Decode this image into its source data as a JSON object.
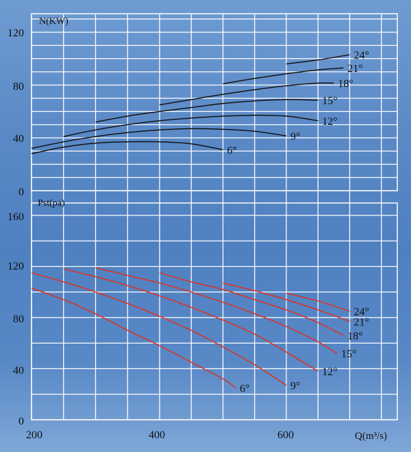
{
  "chart_data": [
    {
      "type": "line",
      "title": "",
      "ylabel": "N(KW)",
      "xlabel": "",
      "xlim": [
        200,
        700
      ],
      "ylim": [
        0,
        130
      ],
      "yticks": [
        "0",
        "40",
        "80",
        "120"
      ],
      "series": [
        {
          "name": "6°",
          "x": [
            200,
            250,
            300,
            350,
            400,
            450,
            500
          ],
          "y": [
            28,
            33,
            36,
            37,
            37,
            35.5,
            31
          ]
        },
        {
          "name": "9°",
          "x": [
            200,
            250,
            300,
            350,
            400,
            450,
            500,
            550,
            600
          ],
          "y": [
            32,
            37,
            41,
            44,
            46,
            47,
            46.5,
            45,
            41.5
          ]
        },
        {
          "name": "12°",
          "x": [
            250,
            300,
            350,
            400,
            450,
            500,
            550,
            600,
            650
          ],
          "y": [
            41,
            46,
            50,
            53,
            55,
            56.5,
            57,
            56.5,
            53
          ]
        },
        {
          "name": "15°",
          "x": [
            300,
            350,
            400,
            450,
            500,
            550,
            600,
            650
          ],
          "y": [
            52,
            56.5,
            60,
            63,
            66,
            68,
            69,
            68.5
          ]
        },
        {
          "name": "18°",
          "x": [
            400,
            450,
            500,
            550,
            600,
            650,
            675
          ],
          "y": [
            65,
            69,
            73,
            76.5,
            79.5,
            81.5,
            81.5
          ]
        },
        {
          "name": "21°",
          "x": [
            500,
            550,
            600,
            650,
            690
          ],
          "y": [
            81,
            85,
            88.5,
            91.5,
            93
          ]
        },
        {
          "name": "24°",
          "x": [
            600,
            650,
            700
          ],
          "y": [
            96,
            99,
            103
          ]
        }
      ]
    },
    {
      "type": "line",
      "title": "",
      "ylabel": "Pst(pa)",
      "xlabel": "Q(m³/s)",
      "xlim": [
        200,
        700
      ],
      "ylim": [
        0,
        160
      ],
      "xticks": [
        "200",
        "400",
        "600"
      ],
      "yticks": [
        "0",
        "40",
        "80",
        "120",
        "160"
      ],
      "series": [
        {
          "name": "6°",
          "x": [
            200,
            250,
            300,
            350,
            400,
            450,
            500,
            520
          ],
          "y": [
            103,
            94,
            83,
            70,
            58,
            45,
            32,
            25
          ]
        },
        {
          "name": "9°",
          "x": [
            200,
            250,
            300,
            350,
            400,
            450,
            500,
            550,
            600
          ],
          "y": [
            115,
            108,
            100,
            91,
            81,
            70,
            57,
            43,
            27
          ]
        },
        {
          "name": "12°",
          "x": [
            250,
            300,
            350,
            400,
            450,
            500,
            550,
            600,
            650
          ],
          "y": [
            118,
            112,
            105,
            97,
            88,
            78,
            67,
            53,
            38
          ]
        },
        {
          "name": "15°",
          "x": [
            300,
            350,
            400,
            450,
            500,
            550,
            600,
            650,
            680
          ],
          "y": [
            119,
            113,
            107,
            100,
            92,
            83,
            73,
            61,
            52
          ]
        },
        {
          "name": "18°",
          "x": [
            400,
            450,
            500,
            550,
            600,
            650,
            690
          ],
          "y": [
            115,
            108,
            102,
            94,
            86,
            76,
            66
          ]
        },
        {
          "name": "21°",
          "x": [
            500,
            550,
            600,
            650,
            700
          ],
          "y": [
            107,
            101,
            94,
            86,
            77
          ]
        },
        {
          "name": "24°",
          "x": [
            600,
            650,
            700
          ],
          "y": [
            99,
            93,
            85
          ]
        }
      ]
    }
  ],
  "colors": {
    "power_curve": "#141414",
    "pressure_curve": "#e0301e",
    "grid": "#ffffff"
  }
}
